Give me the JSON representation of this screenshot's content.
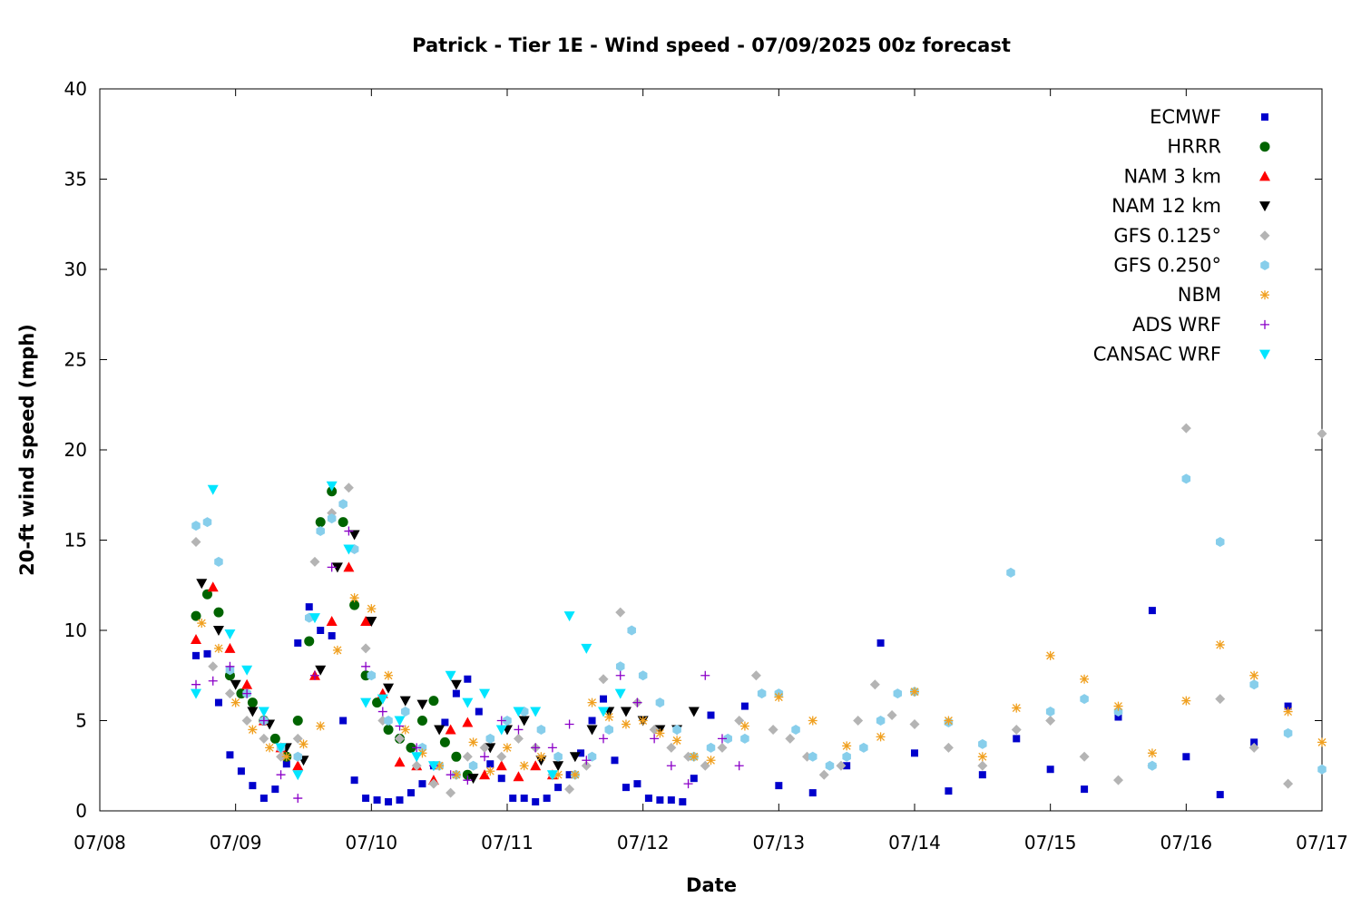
{
  "chart_data": {
    "type": "scatter",
    "title": "Patrick - Tier 1E - Wind speed - 07/09/2025 00z forecast",
    "xlabel": "Date",
    "ylabel": "20-ft wind speed (mph)",
    "xlim": [
      "07/08",
      "07/17"
    ],
    "x_unit": "days",
    "x_ticks": [
      "07/08",
      "07/09",
      "07/10",
      "07/11",
      "07/12",
      "07/13",
      "07/14",
      "07/15",
      "07/16",
      "07/17"
    ],
    "ylim": [
      0,
      40
    ],
    "y_ticks": [
      0,
      5,
      10,
      15,
      20,
      25,
      30,
      35,
      40
    ],
    "grid": false,
    "legend_position": "top-right",
    "series": [
      {
        "name": "ECMWF",
        "color": "#0000cc",
        "marker": "square",
        "x": [
          "07/08 17:00",
          "07/08 19:00",
          "07/08 21:00",
          "07/08 23:00",
          "07/09 01:00",
          "07/09 03:00",
          "07/09 05:00",
          "07/09 07:00",
          "07/09 09:00",
          "07/09 11:00",
          "07/09 13:00",
          "07/09 15:00",
          "07/09 17:00",
          "07/09 19:00",
          "07/09 21:00",
          "07/09 23:00",
          "07/10 01:00",
          "07/10 03:00",
          "07/10 05:00",
          "07/10 07:00",
          "07/10 09:00",
          "07/10 11:00",
          "07/10 13:00",
          "07/10 15:00",
          "07/10 17:00",
          "07/10 19:00",
          "07/10 21:00",
          "07/10 23:00",
          "07/11 01:00",
          "07/11 03:00",
          "07/11 05:00",
          "07/11 07:00",
          "07/11 09:00",
          "07/11 11:00",
          "07/11 13:00",
          "07/11 15:00",
          "07/11 17:00",
          "07/11 19:00",
          "07/11 21:00",
          "07/11 23:00",
          "07/12 01:00",
          "07/12 03:00",
          "07/12 05:00",
          "07/12 07:00",
          "07/12 09:00",
          "07/12 12:00",
          "07/12 18:00",
          "07/13 00:00",
          "07/13 06:00",
          "07/13 12:00",
          "07/13 18:00",
          "07/14 00:00",
          "07/14 06:00",
          "07/14 12:00",
          "07/14 18:00",
          "07/15 00:00",
          "07/15 06:00",
          "07/15 12:00",
          "07/15 18:00",
          "07/16 00:00",
          "07/16 06:00",
          "07/16 12:00",
          "07/16 18:00"
        ],
        "y": [
          8.6,
          8.7,
          6.0,
          3.1,
          2.2,
          1.4,
          0.7,
          1.2,
          2.6,
          9.3,
          11.3,
          10.0,
          9.7,
          5.0,
          1.7,
          0.7,
          0.6,
          0.5,
          0.6,
          1.0,
          1.5,
          2.5,
          4.9,
          6.5,
          7.3,
          5.5,
          2.6,
          1.8,
          0.7,
          0.7,
          0.5,
          0.7,
          1.3,
          2.0,
          3.2,
          5.0,
          6.2,
          2.8,
          1.3,
          1.5,
          0.7,
          0.6,
          0.6,
          0.5,
          1.8,
          5.3,
          5.8,
          1.4,
          1.0,
          2.5,
          9.3,
          3.2,
          1.1,
          2.0,
          4.0,
          2.3,
          1.2,
          5.2,
          11.1,
          3.0,
          0.9,
          3.8,
          5.8
        ]
      },
      {
        "name": "HRRR",
        "color": "#006400",
        "marker": "circle",
        "x": [
          "07/08 17:00",
          "07/08 19:00",
          "07/08 21:00",
          "07/08 23:00",
          "07/09 01:00",
          "07/09 03:00",
          "07/09 05:00",
          "07/09 07:00",
          "07/09 09:00",
          "07/09 11:00",
          "07/09 13:00",
          "07/09 15:00",
          "07/09 17:00",
          "07/09 19:00",
          "07/09 21:00",
          "07/09 23:00",
          "07/10 01:00",
          "07/10 03:00",
          "07/10 05:00",
          "07/10 07:00",
          "07/10 09:00",
          "07/10 11:00",
          "07/10 13:00",
          "07/10 15:00",
          "07/10 17:00"
        ],
        "y": [
          10.8,
          12.0,
          11.0,
          7.5,
          6.5,
          6.0,
          5.0,
          4.0,
          3.0,
          5.0,
          9.4,
          16.0,
          17.7,
          16.0,
          11.4,
          7.5,
          6.0,
          4.5,
          4.0,
          3.5,
          5.0,
          6.1,
          3.8,
          3.0,
          2.0
        ]
      },
      {
        "name": "NAM 3 km",
        "color": "#ff0000",
        "marker": "triangle-up",
        "x": [
          "07/08 17:00",
          "07/08 20:00",
          "07/08 23:00",
          "07/09 02:00",
          "07/09 05:00",
          "07/09 08:00",
          "07/09 11:00",
          "07/09 14:00",
          "07/09 17:00",
          "07/09 20:00",
          "07/09 23:00",
          "07/10 02:00",
          "07/10 05:00",
          "07/10 08:00",
          "07/10 11:00",
          "07/10 14:00",
          "07/10 17:00",
          "07/10 20:00",
          "07/10 23:00",
          "07/11 02:00",
          "07/11 05:00",
          "07/11 08:00"
        ],
        "y": [
          9.5,
          12.4,
          9.0,
          7.0,
          5.0,
          3.5,
          2.5,
          7.5,
          10.5,
          13.5,
          10.5,
          6.5,
          2.7,
          2.5,
          1.7,
          4.5,
          4.9,
          2.0,
          2.5,
          1.9,
          2.5,
          2.0
        ]
      },
      {
        "name": "NAM 12 km",
        "color": "#000000",
        "marker": "triangle-down",
        "x": [
          "07/08 18:00",
          "07/08 21:00",
          "07/09 00:00",
          "07/09 03:00",
          "07/09 06:00",
          "07/09 09:00",
          "07/09 12:00",
          "07/09 15:00",
          "07/09 18:00",
          "07/09 21:00",
          "07/10 00:00",
          "07/10 03:00",
          "07/10 06:00",
          "07/10 09:00",
          "07/10 12:00",
          "07/10 15:00",
          "07/10 18:00",
          "07/10 21:00",
          "07/11 00:00",
          "07/11 03:00",
          "07/11 06:00",
          "07/11 09:00",
          "07/11 12:00",
          "07/11 15:00",
          "07/11 18:00",
          "07/11 21:00",
          "07/12 00:00",
          "07/12 03:00",
          "07/12 06:00",
          "07/12 09:00"
        ],
        "y": [
          12.6,
          10.0,
          7.0,
          5.5,
          4.8,
          3.5,
          2.8,
          7.8,
          13.5,
          15.3,
          10.5,
          6.8,
          6.1,
          5.9,
          4.5,
          7.0,
          1.8,
          3.5,
          4.5,
          5.0,
          2.8,
          2.5,
          3.0,
          4.5,
          5.5,
          5.5,
          5.0,
          4.5,
          4.5,
          5.5
        ]
      },
      {
        "name": "GFS 0.125°",
        "color": "#b4b4b4",
        "marker": "diamond",
        "x": [
          "07/08 17:00",
          "07/08 20:00",
          "07/08 23:00",
          "07/09 02:00",
          "07/09 05:00",
          "07/09 08:00",
          "07/09 11:00",
          "07/09 14:00",
          "07/09 17:00",
          "07/09 20:00",
          "07/09 23:00",
          "07/10 02:00",
          "07/10 05:00",
          "07/10 08:00",
          "07/10 11:00",
          "07/10 14:00",
          "07/10 17:00",
          "07/10 20:00",
          "07/10 23:00",
          "07/11 02:00",
          "07/11 05:00",
          "07/11 08:00",
          "07/11 11:00",
          "07/11 14:00",
          "07/11 17:00",
          "07/11 20:00",
          "07/11 23:00",
          "07/12 02:00",
          "07/12 05:00",
          "07/12 08:00",
          "07/12 11:00",
          "07/12 14:00",
          "07/12 17:00",
          "07/12 20:00",
          "07/12 23:00",
          "07/13 02:00",
          "07/13 05:00",
          "07/13 08:00",
          "07/13 11:00",
          "07/13 14:00",
          "07/13 17:00",
          "07/13 20:00",
          "07/14 00:00",
          "07/14 06:00",
          "07/14 12:00",
          "07/14 18:00",
          "07/15 00:00",
          "07/15 06:00",
          "07/15 12:00",
          "07/15 18:00",
          "07/16 00:00",
          "07/16 06:00",
          "07/16 12:00",
          "07/16 18:00",
          "07/17 00:00"
        ],
        "y": [
          14.9,
          8.0,
          6.5,
          5.0,
          4.0,
          3.0,
          4.0,
          13.8,
          16.5,
          17.9,
          9.0,
          5.0,
          4.0,
          2.5,
          1.5,
          1.0,
          3.0,
          3.5,
          3.0,
          4.0,
          3.5,
          2.0,
          1.2,
          2.5,
          7.3,
          11.0,
          6.0,
          4.5,
          3.5,
          3.0,
          2.5,
          3.5,
          5.0,
          7.5,
          4.5,
          4.0,
          3.0,
          2.0,
          2.5,
          5.0,
          7.0,
          5.3,
          4.8,
          3.5,
          2.5,
          4.5,
          5.0,
          3.0,
          1.7,
          2.5,
          21.2,
          6.2,
          3.5,
          1.5,
          20.9
        ]
      },
      {
        "name": "GFS 0.250°",
        "color": "#87ceeb",
        "marker": "hexagon",
        "x": [
          "07/08 17:00",
          "07/08 19:00",
          "07/08 21:00",
          "07/08 23:00",
          "07/09 02:00",
          "07/09 05:00",
          "07/09 08:00",
          "07/09 11:00",
          "07/09 13:00",
          "07/09 15:00",
          "07/09 17:00",
          "07/09 19:00",
          "07/09 21:00",
          "07/10 00:00",
          "07/10 03:00",
          "07/10 06:00",
          "07/10 09:00",
          "07/10 12:00",
          "07/10 15:00",
          "07/10 18:00",
          "07/10 21:00",
          "07/11 00:00",
          "07/11 03:00",
          "07/11 06:00",
          "07/11 09:00",
          "07/11 12:00",
          "07/11 15:00",
          "07/11 18:00",
          "07/11 20:00",
          "07/11 22:00",
          "07/12 00:00",
          "07/12 03:00",
          "07/12 06:00",
          "07/12 09:00",
          "07/12 12:00",
          "07/12 15:00",
          "07/12 18:00",
          "07/12 21:00",
          "07/13 00:00",
          "07/13 03:00",
          "07/13 06:00",
          "07/13 09:00",
          "07/13 12:00",
          "07/13 15:00",
          "07/13 18:00",
          "07/13 21:00",
          "07/14 00:00",
          "07/14 06:00",
          "07/14 12:00",
          "07/14 17:00",
          "07/15 00:00",
          "07/15 06:00",
          "07/15 12:00",
          "07/15 18:00",
          "07/16 00:00",
          "07/16 06:00",
          "07/16 12:00",
          "07/16 18:00",
          "07/17 00:00"
        ],
        "y": [
          15.8,
          16.0,
          13.8,
          7.8,
          6.5,
          5.0,
          3.5,
          3.0,
          10.7,
          15.5,
          16.2,
          17.0,
          14.5,
          7.5,
          5.0,
          5.5,
          3.5,
          2.5,
          2.0,
          2.5,
          4.0,
          5.0,
          5.5,
          4.5,
          3.0,
          2.0,
          3.0,
          4.5,
          8.0,
          10.0,
          7.5,
          6.0,
          4.5,
          3.0,
          3.5,
          4.0,
          4.0,
          6.5,
          6.5,
          4.5,
          3.0,
          2.5,
          3.0,
          3.5,
          5.0,
          6.5,
          6.6,
          4.9,
          3.7,
          13.2,
          5.5,
          6.2,
          5.5,
          2.5,
          18.4,
          14.9,
          7.0,
          4.3,
          2.3
        ]
      },
      {
        "name": "NBM",
        "color": "#f0a020",
        "marker": "asterisk",
        "x": [
          "07/08 18:00",
          "07/08 21:00",
          "07/09 00:00",
          "07/09 03:00",
          "07/09 06:00",
          "07/09 09:00",
          "07/09 12:00",
          "07/09 15:00",
          "07/09 18:00",
          "07/09 21:00",
          "07/10 00:00",
          "07/10 03:00",
          "07/10 06:00",
          "07/10 09:00",
          "07/10 12:00",
          "07/10 15:00",
          "07/10 18:00",
          "07/10 21:00",
          "07/11 00:00",
          "07/11 03:00",
          "07/11 06:00",
          "07/11 09:00",
          "07/11 12:00",
          "07/11 15:00",
          "07/11 18:00",
          "07/11 21:00",
          "07/12 00:00",
          "07/12 03:00",
          "07/12 06:00",
          "07/12 09:00",
          "07/12 12:00",
          "07/12 18:00",
          "07/13 00:00",
          "07/13 06:00",
          "07/13 12:00",
          "07/13 18:00",
          "07/14 00:00",
          "07/14 06:00",
          "07/14 12:00",
          "07/14 18:00",
          "07/15 00:00",
          "07/15 06:00",
          "07/15 12:00",
          "07/15 18:00",
          "07/16 00:00",
          "07/16 06:00",
          "07/16 12:00",
          "07/16 18:00",
          "07/17 00:00"
        ],
        "y": [
          10.4,
          9.0,
          6.0,
          4.5,
          3.5,
          3.0,
          3.7,
          4.7,
          8.9,
          11.8,
          11.2,
          7.5,
          4.5,
          3.2,
          2.5,
          2.0,
          3.8,
          2.2,
          3.5,
          2.5,
          3.0,
          2.0,
          2.0,
          6.0,
          5.2,
          4.8,
          5.0,
          4.3,
          3.9,
          3.0,
          2.8,
          4.7,
          6.3,
          5.0,
          3.6,
          4.1,
          6.6,
          5.0,
          3.0,
          5.7,
          8.6,
          7.3,
          5.8,
          3.2,
          6.1,
          9.2,
          7.5,
          5.5,
          3.8
        ]
      },
      {
        "name": "ADS WRF",
        "color": "#8b00c8",
        "marker": "plus",
        "x": [
          "07/08 17:00",
          "07/08 20:00",
          "07/08 23:00",
          "07/09 02:00",
          "07/09 05:00",
          "07/09 08:00",
          "07/09 11:00",
          "07/09 14:00",
          "07/09 17:00",
          "07/09 20:00",
          "07/09 23:00",
          "07/10 02:00",
          "07/10 05:00",
          "07/10 08:00",
          "07/10 11:00",
          "07/10 14:00",
          "07/10 17:00",
          "07/10 20:00",
          "07/10 23:00",
          "07/11 02:00",
          "07/11 05:00",
          "07/11 08:00",
          "07/11 11:00",
          "07/11 14:00",
          "07/11 17:00",
          "07/11 20:00",
          "07/11 23:00",
          "07/12 02:00",
          "07/12 05:00",
          "07/12 08:00",
          "07/12 11:00",
          "07/12 14:00",
          "07/12 17:00"
        ],
        "y": [
          7.0,
          7.2,
          8.0,
          6.5,
          5.0,
          2.0,
          0.7,
          7.5,
          13.5,
          15.5,
          8.0,
          5.5,
          4.7,
          3.5,
          2.5,
          2.0,
          1.7,
          3.0,
          5.0,
          4.5,
          3.5,
          3.5,
          4.8,
          2.8,
          4.0,
          7.5,
          6.0,
          4.0,
          2.5,
          1.5,
          7.5,
          4.0,
          2.5
        ]
      },
      {
        "name": "CANSAC WRF",
        "color": "#00e5ff",
        "marker": "triangle-down",
        "x": [
          "07/08 17:00",
          "07/08 20:00",
          "07/08 23:00",
          "07/09 02:00",
          "07/09 05:00",
          "07/09 08:00",
          "07/09 11:00",
          "07/09 14:00",
          "07/09 17:00",
          "07/09 20:00",
          "07/09 23:00",
          "07/10 02:00",
          "07/10 05:00",
          "07/10 08:00",
          "07/10 11:00",
          "07/10 14:00",
          "07/10 17:00",
          "07/10 20:00",
          "07/10 23:00",
          "07/11 02:00",
          "07/11 05:00",
          "07/11 08:00",
          "07/11 11:00",
          "07/11 14:00",
          "07/11 17:00",
          "07/11 20:00"
        ],
        "y": [
          6.5,
          17.8,
          9.8,
          7.8,
          5.5,
          3.5,
          2.0,
          10.7,
          18.0,
          14.5,
          6.0,
          6.2,
          5.0,
          3.0,
          2.5,
          7.5,
          6.0,
          6.5,
          4.5,
          5.5,
          5.5,
          2.0,
          10.8,
          9.0,
          5.5,
          6.5
        ]
      }
    ]
  }
}
